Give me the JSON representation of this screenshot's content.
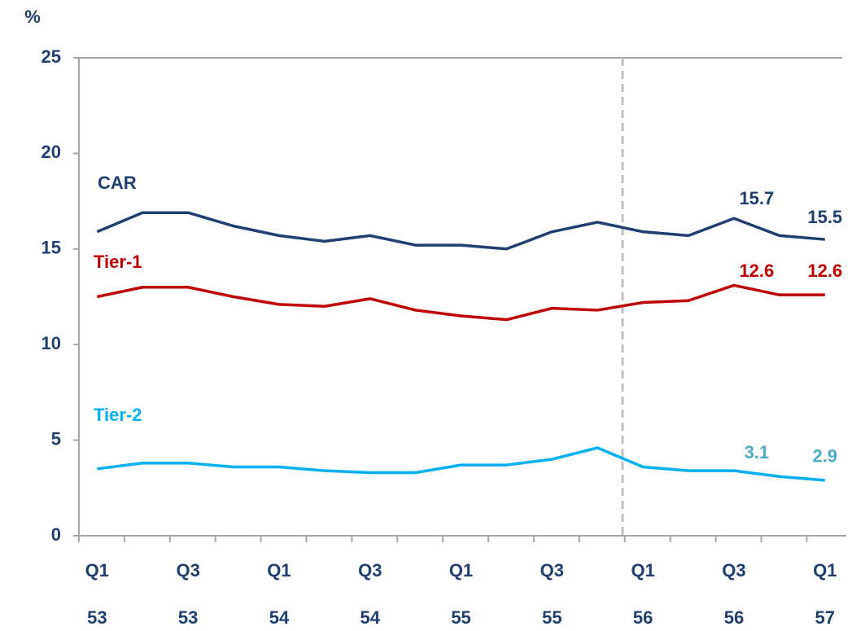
{
  "chart_data": {
    "type": "line",
    "y_axis_label": "%",
    "categories": [
      "Q1",
      null,
      "Q3",
      null,
      "Q1",
      null,
      "Q3",
      null,
      "Q1",
      null,
      "Q3",
      null,
      "Q1",
      null,
      "Q3",
      null,
      "Q1"
    ],
    "years": [
      "53",
      null,
      "53",
      null,
      "54",
      null,
      "54",
      null,
      "55",
      null,
      "55",
      null,
      "56",
      null,
      "56",
      null,
      "57"
    ],
    "series": [
      {
        "name": "CAR",
        "color": "#1f3f73",
        "label_color": "#1f3f73",
        "values": [
          15.9,
          16.9,
          16.9,
          16.2,
          15.7,
          15.4,
          15.7,
          15.2,
          15.2,
          15.0,
          15.9,
          16.4,
          15.9,
          15.7,
          16.6,
          15.7,
          15.5
        ],
        "value_labels": [
          null,
          null,
          null,
          null,
          null,
          null,
          null,
          null,
          null,
          null,
          null,
          null,
          null,
          null,
          null,
          "15.7",
          "15.5"
        ]
      },
      {
        "name": "Tier-1",
        "color": "#c00000",
        "label_color": "#c00000",
        "values": [
          12.5,
          13.0,
          13.0,
          12.5,
          12.1,
          12.0,
          12.4,
          11.8,
          11.5,
          11.3,
          11.9,
          11.8,
          12.2,
          12.3,
          13.1,
          12.6,
          12.6
        ],
        "value_labels": [
          null,
          null,
          null,
          null,
          null,
          null,
          null,
          null,
          null,
          null,
          null,
          null,
          null,
          null,
          null,
          "12.6",
          "12.6"
        ]
      },
      {
        "name": "Tier-2",
        "color": "#00b0f0",
        "label_color": "#4bacc6",
        "values": [
          3.5,
          3.8,
          3.8,
          3.6,
          3.6,
          3.4,
          3.3,
          3.3,
          3.7,
          3.7,
          4.0,
          4.6,
          3.6,
          3.4,
          3.4,
          3.1,
          2.9
        ],
        "value_labels": [
          null,
          null,
          null,
          null,
          null,
          null,
          null,
          null,
          null,
          null,
          null,
          null,
          null,
          null,
          null,
          "3.1",
          "2.9"
        ]
      }
    ],
    "ylim": [
      0,
      25
    ],
    "yticks": [
      0,
      5,
      10,
      15,
      20,
      25
    ],
    "grid": false
  }
}
